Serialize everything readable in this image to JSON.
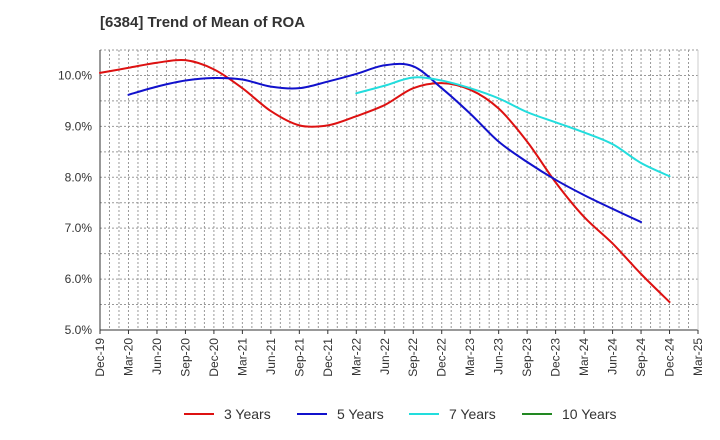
{
  "chart_data": {
    "type": "line",
    "title": "[6384]  Trend of Mean of ROA",
    "xlabel": "",
    "ylabel": "",
    "ylim": [
      5.0,
      10.5
    ],
    "y_ticks": [
      "5.0%",
      "6.0%",
      "7.0%",
      "8.0%",
      "9.0%",
      "10.0%"
    ],
    "y_tick_values": [
      5,
      6,
      7,
      8,
      9,
      10
    ],
    "x_ticks": [
      "Dec-19",
      "Mar-20",
      "Jun-20",
      "Sep-20",
      "Dec-20",
      "Mar-21",
      "Jun-21",
      "Sep-21",
      "Dec-21",
      "Mar-22",
      "Jun-22",
      "Sep-22",
      "Dec-22",
      "Mar-23",
      "Jun-23",
      "Sep-23",
      "Dec-23",
      "Mar-24",
      "Jun-24",
      "Sep-24",
      "Dec-24",
      "Mar-25"
    ],
    "grid": true,
    "legend_position": "bottom",
    "series": [
      {
        "name": "3 Years",
        "color": "#dd1111",
        "start_index": 0,
        "values": [
          10.05,
          10.15,
          10.25,
          10.3,
          10.12,
          9.75,
          9.3,
          9.02,
          9.02,
          9.2,
          9.42,
          9.75,
          9.85,
          9.72,
          9.35,
          8.7,
          7.9,
          7.22,
          6.7,
          6.1,
          5.55
        ]
      },
      {
        "name": "5 Years",
        "color": "#1111cc",
        "start_index": 1,
        "values": [
          9.62,
          9.78,
          9.9,
          9.95,
          9.92,
          9.78,
          9.75,
          9.88,
          10.03,
          10.2,
          10.18,
          9.75,
          9.25,
          8.7,
          8.3,
          7.95,
          7.65,
          7.38,
          7.12
        ]
      },
      {
        "name": "7 Years",
        "color": "#22dddd",
        "start_index": 9,
        "values": [
          9.65,
          9.8,
          9.96,
          9.9,
          9.75,
          9.55,
          9.28,
          9.08,
          8.88,
          8.65,
          8.28,
          8.02
        ]
      },
      {
        "name": "10 Years",
        "color": "#228822",
        "start_index": 0,
        "values": []
      }
    ]
  }
}
